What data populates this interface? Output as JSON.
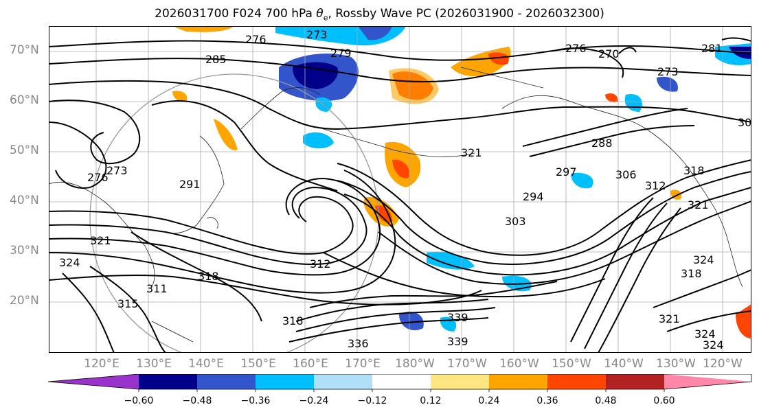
{
  "title_prefix": "2026031700 F024 700 hPa ",
  "title_theta": "θ",
  "title_sub": "e",
  "title_suffix": ", Rossby Wave PC (2026031900 - 2026032300)",
  "lat_labels": [
    "70°N",
    "60°N",
    "50°N",
    "40°N",
    "30°N",
    "20°N"
  ],
  "lon_labels": [
    "120°E",
    "130°E",
    "140°E",
    "150°E",
    "160°E",
    "170°E",
    "180°W",
    "170°W",
    "160°W",
    "150°W",
    "140°W",
    "130°W",
    "120°W"
  ],
  "contour_labels": [
    "276",
    "273",
    "279",
    "285",
    "276",
    "270",
    "281",
    "273",
    "288",
    "294",
    "297",
    "303",
    "306",
    "312",
    "318",
    "276",
    "273",
    "291",
    "321",
    "312",
    "318",
    "311",
    "315",
    "318",
    "324",
    "321",
    "324",
    "321",
    "318",
    "336",
    "339",
    "339",
    "321",
    "324",
    "324",
    "30"
  ],
  "colorbar": {
    "ticks": [
      "−0.60",
      "−0.48",
      "−0.36",
      "−0.24",
      "−0.12",
      "0.12",
      "0.24",
      "0.36",
      "0.48",
      "0.60"
    ],
    "colors": [
      "#9933cc",
      "#00008b",
      "#3355cc",
      "#00bfff",
      "#b0e0f8",
      "#ffffff",
      "#ffe680",
      "#ffa500",
      "#ff4500",
      "#b22222",
      "#ff88aa"
    ]
  }
}
